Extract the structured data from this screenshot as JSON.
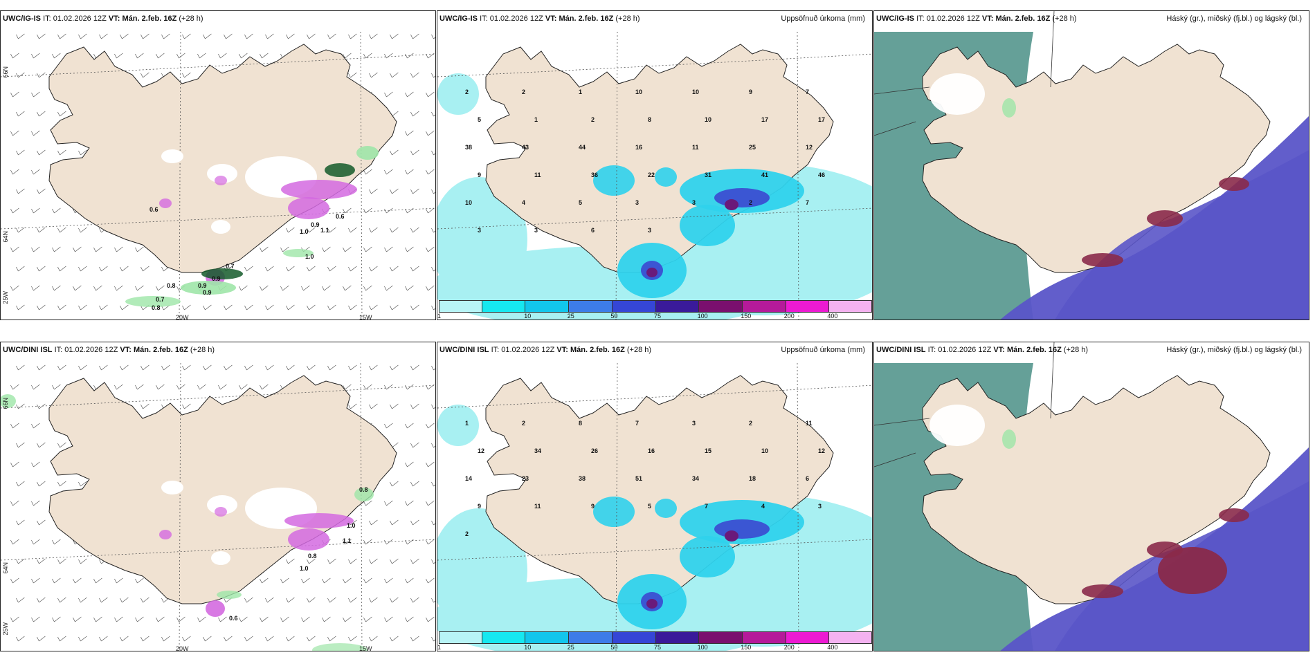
{
  "palette": {
    "land": "#f0e2d2",
    "sea_white": "#ffffff",
    "precip_light": "#a8f0f2",
    "precip_mid": "#2fd2ec",
    "precip_high": "#3b4fd2",
    "precip_peak": "#6a1a7a",
    "snow_magenta": "#d46ae0",
    "green_low": "#9ee6a8",
    "green_dark": "#145a2a",
    "cloud_high": "#4a8f86",
    "cloud_mid": "#5a55c8",
    "cloud_low": "#8a2a4a"
  },
  "panels": [
    {
      "id": "uwc-ig-is-wind",
      "model": "UWC/IG-IS",
      "it_prefix": "IT:",
      "it_value": "01.02.2026 12Z",
      "vt_prefix": "VT:",
      "vt_value": "Mán. 2.feb. 16Z",
      "lead": "(+28 h)",
      "right_title": "",
      "grid": {
        "n66": "66N",
        "n64": "64N",
        "w25": "25W",
        "w20": "20W",
        "w15": "15W"
      },
      "numbers": [
        "0.6",
        "0.7",
        "0.9",
        "0.9",
        "0.8",
        "0.7",
        "0.8",
        "0.9",
        "1.0",
        "1.1",
        "0.9",
        "0.6",
        "1.0"
      ]
    },
    {
      "id": "uwc-ig-is-precip",
      "model": "UWC/IG-IS",
      "it_prefix": "IT:",
      "it_value": "01.02.2026 12Z",
      "vt_prefix": "VT:",
      "vt_value": "Mán. 2.feb. 16Z",
      "lead": "(+28 h)",
      "right_title": "Uppsöfnuð úrkoma (mm)",
      "numbers": [
        "2",
        "2",
        "1",
        "10",
        "10",
        "9",
        "7",
        "5",
        "1",
        "2",
        "8",
        "10",
        "17",
        "17",
        "38",
        "43",
        "44",
        "16",
        "11",
        "25",
        "12",
        "9",
        "11",
        "36",
        "22",
        "31",
        "41",
        "46",
        "10",
        "4",
        "5",
        "3",
        "3",
        "2",
        "7",
        "3",
        "3",
        "6",
        "3"
      ]
    },
    {
      "id": "uwc-ig-is-cloud",
      "model": "UWC/IG-IS",
      "it_prefix": "IT:",
      "it_value": "01.02.2026 12Z",
      "vt_prefix": "VT:",
      "vt_value": "Mán. 2.feb. 16Z",
      "lead": "(+28 h)",
      "right_title": "Háský (gr.), miðský (fj.bl.) og lágský (bl.)"
    },
    {
      "id": "uwc-dini-isl-wind",
      "model": "UWC/DINI ISL",
      "it_prefix": "IT:",
      "it_value": "01.02.2026 12Z",
      "vt_prefix": "VT:",
      "vt_value": "Mán. 2.feb. 16Z",
      "lead": "(+28 h)",
      "right_title": "",
      "grid": {
        "n66": "66N",
        "n64": "64N",
        "w25": "25W",
        "w20": "20W",
        "w15": "15W"
      },
      "numbers": [
        "0.6",
        "1.0",
        "0.8",
        "1.1",
        "1.0",
        "0.8"
      ]
    },
    {
      "id": "uwc-dini-isl-precip",
      "model": "UWC/DINI ISL",
      "it_prefix": "IT:",
      "it_value": "01.02.2026 12Z",
      "vt_prefix": "VT:",
      "vt_value": "Mán. 2.feb. 16Z",
      "lead": "(+28 h)",
      "right_title": "Uppsöfnuð úrkoma (mm)",
      "numbers": [
        "1",
        "2",
        "8",
        "7",
        "3",
        "2",
        "11",
        "12",
        "34",
        "26",
        "16",
        "15",
        "10",
        "12",
        "14",
        "23",
        "38",
        "51",
        "34",
        "18",
        "6",
        "9",
        "11",
        "9",
        "5",
        "7",
        "4",
        "3",
        "2"
      ]
    },
    {
      "id": "uwc-dini-isl-cloud",
      "model": "UWC/DINI ISL",
      "it_prefix": "IT:",
      "it_value": "01.02.2026 12Z",
      "vt_prefix": "VT:",
      "vt_value": "Mán. 2.feb. 16Z",
      "lead": "(+28 h)",
      "right_title": "Háský (gr.), miðský (fj.bl.) og lágský (bl.)"
    }
  ],
  "legend": {
    "ticks": [
      "1",
      "10",
      "25",
      "50",
      "75",
      "100",
      "150",
      "200",
      "400"
    ],
    "colors": [
      "#b8f4f6",
      "#16e8f0",
      "#12c6ec",
      "#3d7ce8",
      "#3546d6",
      "#3a1a9a",
      "#7a0f6e",
      "#b51a9a",
      "#ec1ad2",
      "#f4b2f0"
    ]
  }
}
